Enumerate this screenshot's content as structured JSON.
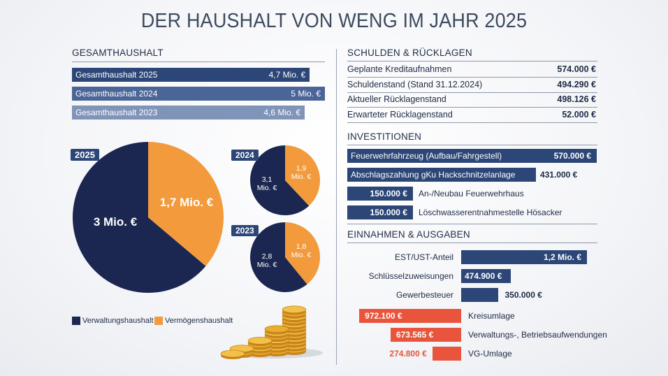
{
  "title": "DER HAUSHALT VON WENG IM JAHR 2025",
  "gesamt": {
    "heading": "GESAMTHAUSHALT",
    "rows": [
      {
        "label": "Gesamthaushalt 2025",
        "value": "4,7 Mio. €",
        "amount": 4.7,
        "color": "#2c4677"
      },
      {
        "label": "Gesamthaushalt 2024",
        "value": "5 Mio. €",
        "amount": 5.0,
        "color": "#4a6597"
      },
      {
        "label": "Gesamthaushalt 2023",
        "value": "4,6 Mio. €",
        "amount": 4.6,
        "color": "#7f94b8"
      }
    ]
  },
  "pies": {
    "p2025": {
      "year": "2025",
      "verwaltung_label": "3 Mio. €",
      "verwaltung": 3.0,
      "vermoegen_label": "1,7 Mio. €",
      "vermoegen": 1.7
    },
    "p2024": {
      "year": "2024",
      "verwaltung_label": "3,1\nMio. €",
      "verwaltung": 3.1,
      "vermoegen_label": "1,9\nMio. €",
      "vermoegen": 1.9
    },
    "p2023": {
      "year": "2023",
      "verwaltung_label": "2,8\nMio. €",
      "verwaltung": 2.8,
      "vermoegen_label": "1,8\nMio. €",
      "vermoegen": 1.8
    }
  },
  "legend": {
    "verwaltung": "Verwaltungshaushalt",
    "vermoegen": "Vermögenshaushalt",
    "color_verwaltung": "#1b2751",
    "color_vermoegen": "#f29a3c"
  },
  "schulden": {
    "heading": "SCHULDEN & RÜCKLAGEN",
    "rows": [
      {
        "label": "Geplante Kreditaufnahmen",
        "value": "574.000 €"
      },
      {
        "label": "Schuldenstand (Stand 31.12.2024)",
        "value": "494.290 €"
      },
      {
        "label": "Aktueller Rücklagenstand",
        "value": "498.126 €"
      },
      {
        "label": "Erwarteter Rücklagenstand",
        "value": "52.000 €"
      }
    ]
  },
  "investitionen": {
    "heading": "INVESTITIONEN",
    "rows": [
      {
        "label": "Feuerwehrfahrzeug (Aufbau/Fahrgestell)",
        "value": "570.000 €",
        "amount": 570000
      },
      {
        "label": "Abschlagszahlung gKu Hackschnitzelanlage",
        "value": "431.000 €",
        "amount": 431000
      },
      {
        "label": "An-/Neubau Feuerwehrhaus",
        "value": "150.000 €",
        "amount": 150000
      },
      {
        "label": "Löschwasserentnahmestelle Hösacker",
        "value": "150.000 €",
        "amount": 150000
      }
    ]
  },
  "einnahmen": {
    "heading": "EINNAHMEN & AUSGABEN",
    "color_in": "#2c4677",
    "color_out": "#e8553c",
    "income": [
      {
        "label": "EST/UST-Anteil",
        "value": "1,2 Mio. €",
        "amount": 1200000
      },
      {
        "label": "Schlüsselzuweisungen",
        "value": "474.900 €",
        "amount": 474900
      },
      {
        "label": "Gewerbesteuer",
        "value": "350.000 €",
        "amount": 350000
      }
    ],
    "expense": [
      {
        "label": "Kreisumlage",
        "value": "972.100 €",
        "amount": 972100
      },
      {
        "label": "Verwaltungs-, Betriebsaufwendungen",
        "value": "673.565 €",
        "amount": 673565
      },
      {
        "label": "VG-Umlage",
        "value": "274.800 €",
        "amount": 274800
      }
    ]
  },
  "chart_data": [
    {
      "type": "bar",
      "title": "GESAMTHAUSHALT",
      "categories": [
        "Gesamthaushalt 2025",
        "Gesamthaushalt 2024",
        "Gesamthaushalt 2023"
      ],
      "values": [
        4.7,
        5.0,
        4.6
      ],
      "unit": "Mio. €"
    },
    {
      "type": "pie",
      "title": "2025",
      "categories": [
        "Verwaltungshaushalt",
        "Vermögenshaushalt"
      ],
      "values": [
        3.0,
        1.7
      ],
      "unit": "Mio. €"
    },
    {
      "type": "pie",
      "title": "2024",
      "categories": [
        "Verwaltungshaushalt",
        "Vermögenshaushalt"
      ],
      "values": [
        3.1,
        1.9
      ],
      "unit": "Mio. €"
    },
    {
      "type": "pie",
      "title": "2023",
      "categories": [
        "Verwaltungshaushalt",
        "Vermögenshaushalt"
      ],
      "values": [
        2.8,
        1.8
      ],
      "unit": "Mio. €"
    },
    {
      "type": "bar",
      "title": "INVESTITIONEN",
      "categories": [
        "Feuerwehrfahrzeug (Aufbau/Fahrgestell)",
        "Abschlagszahlung gKu Hackschnitzelanlage",
        "An-/Neubau Feuerwehrhaus",
        "Löschwasserentnahmestelle Hösacker"
      ],
      "values": [
        570000,
        431000,
        150000,
        150000
      ],
      "unit": "€"
    },
    {
      "type": "bar",
      "title": "EINNAHMEN & AUSGABEN",
      "categories": [
        "EST/UST-Anteil",
        "Schlüsselzuweisungen",
        "Gewerbesteuer",
        "Kreisumlage",
        "Verwaltungs-, Betriebsaufwendungen",
        "VG-Umlage"
      ],
      "values": [
        1200000,
        474900,
        350000,
        -972100,
        -673565,
        -274800
      ],
      "unit": "€"
    }
  ]
}
